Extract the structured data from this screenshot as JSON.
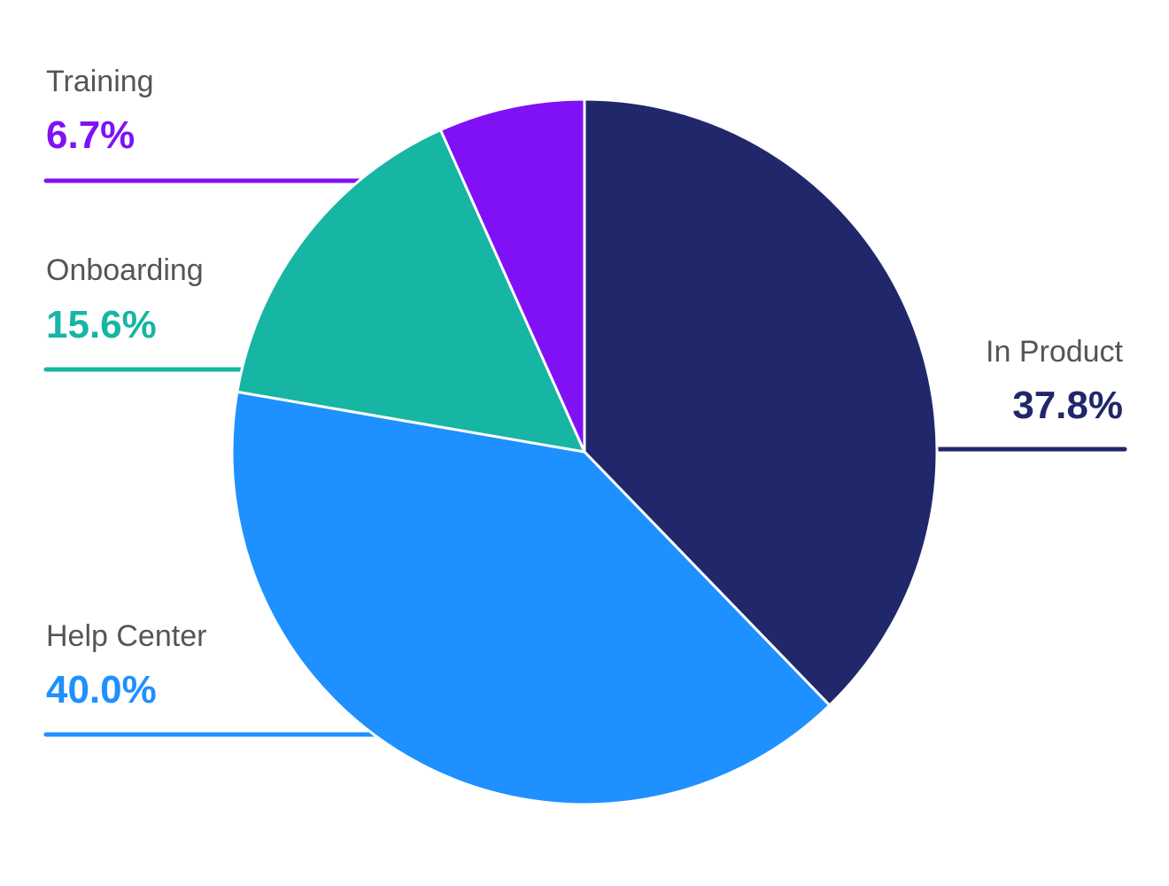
{
  "chart_data": {
    "type": "pie",
    "slices": [
      {
        "label": "In Product",
        "value_text": "37.8%",
        "value": 37.8,
        "color": "#20286B"
      },
      {
        "label": "Help Center",
        "value_text": "40.0%",
        "value": 40.0,
        "color": "#1E90FF"
      },
      {
        "label": "Onboarding",
        "value_text": "15.6%",
        "value": 15.6,
        "color": "#17B5A3"
      },
      {
        "label": "Training",
        "value_text": "6.7%",
        "value": 6.7,
        "color": "#8011F5"
      }
    ],
    "legend": "callout-labels",
    "start": "12 o'clock, clockwise"
  },
  "colors": {
    "label_text": "#555555",
    "slice_border": "#ffffff"
  }
}
